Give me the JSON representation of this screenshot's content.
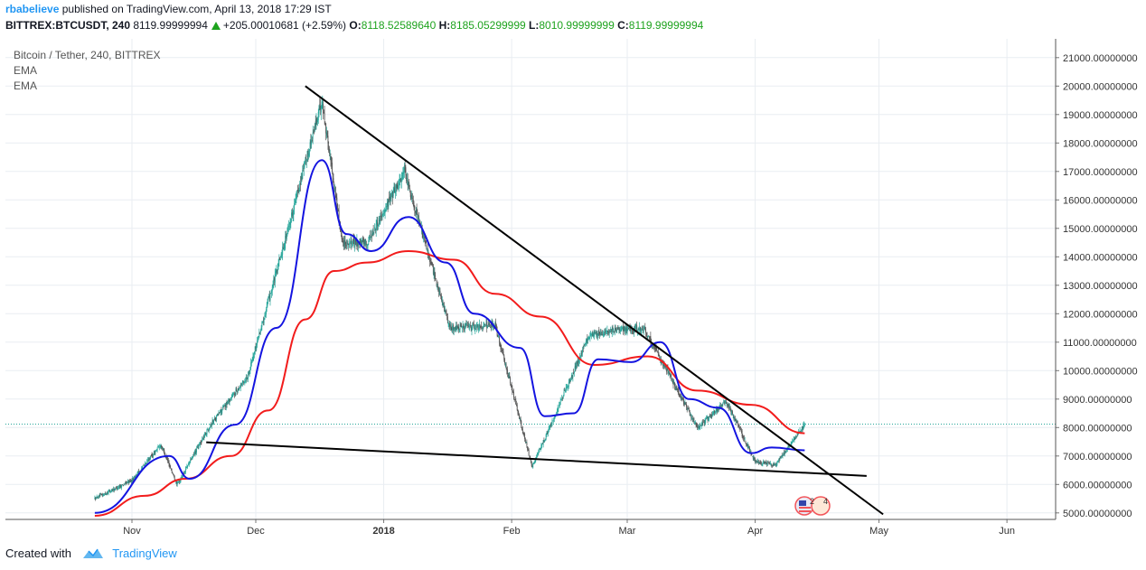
{
  "header": {
    "author": "rbabelieve",
    "published_text": "published on TradingView.com, April 13, 2018 17:29 IST",
    "symbol": "BITTREX:BTCUSDT, 240",
    "last": "8119.99999994",
    "change": "+205.00010681 (+2.59%)",
    "open_label": "O:",
    "open": "8118.52589640",
    "high_label": "H:",
    "high": "8185.05299999",
    "low_label": "L:",
    "low": "8010.99999999",
    "close_label": "C:",
    "close": "8119.99999994"
  },
  "legend": {
    "title": "Bitcoin / Tether, 240, BITTREX",
    "ind1": "EMA",
    "ind2": "EMA"
  },
  "footer": {
    "created_with": "Created with",
    "brand": "TradingView"
  },
  "colors": {
    "up": "#26a69a",
    "down": "#555555",
    "ema_fast": "#1414e0",
    "ema_slow": "#f21c1c",
    "trendline": "#000000",
    "last_line": "#26a69a",
    "accent": "#2196f3"
  },
  "chart_data": {
    "type": "candlestick",
    "x_labels": [
      "Nov",
      "Dec",
      "2018",
      "Feb",
      "Mar",
      "Apr",
      "May",
      "Jun"
    ],
    "y_ticks": [
      "21000.00000000",
      "20000.00000000",
      "19000.00000000",
      "18000.00000000",
      "17000.00000000",
      "16000.00000000",
      "15000.00000000",
      "14000.00000000",
      "13000.00000000",
      "12000.00000000",
      "11000.00000000",
      "10000.00000000",
      "9000.00000000",
      "8000.00000000",
      "7000.00000000",
      "6000.00000000",
      "5000.00000000"
    ],
    "ylim": [
      4900,
      21500
    ],
    "last_price": 8120,
    "close_series_x": [
      "2017-10-23",
      "2017-11-01",
      "2017-11-08",
      "2017-11-12",
      "2017-11-20",
      "2017-11-29",
      "2017-12-07",
      "2017-12-17",
      "2017-12-22",
      "2017-12-28",
      "2018-01-06",
      "2018-01-17",
      "2018-01-28",
      "2018-02-06",
      "2018-02-20",
      "2018-03-05",
      "2018-03-18",
      "2018-03-25",
      "2018-04-01",
      "2018-04-06",
      "2018-04-13"
    ],
    "close_series_y": [
      5500,
      6150,
      7400,
      6000,
      8100,
      9800,
      14000,
      19500,
      14500,
      14500,
      17000,
      11500,
      11600,
      6600,
      11300,
      11500,
      8000,
      8900,
      6800,
      6700,
      8120
    ],
    "ema_fast_x": [
      "2017-10-23",
      "2017-11-10",
      "2017-11-15",
      "2017-11-26",
      "2017-12-06",
      "2017-12-17",
      "2017-12-23",
      "2017-12-29",
      "2018-01-07",
      "2018-01-16",
      "2018-01-23",
      "2018-02-03",
      "2018-02-09",
      "2018-02-16",
      "2018-02-22",
      "2018-03-02",
      "2018-03-09",
      "2018-03-16",
      "2018-03-23",
      "2018-03-31",
      "2018-04-05",
      "2018-04-13"
    ],
    "ema_fast_y": [
      5000,
      7000,
      6200,
      8100,
      11500,
      17400,
      14800,
      14200,
      15400,
      13800,
      12000,
      10800,
      8400,
      8500,
      10400,
      10300,
      11000,
      9000,
      8700,
      7100,
      7300,
      7200
    ],
    "ema_slow_x": [
      "2017-10-23",
      "2017-11-04",
      "2017-11-14",
      "2017-11-25",
      "2017-12-04",
      "2017-12-13",
      "2017-12-20",
      "2017-12-28",
      "2018-01-07",
      "2018-01-18",
      "2018-01-28",
      "2018-02-08",
      "2018-02-21",
      "2018-03-06",
      "2018-03-18",
      "2018-03-31",
      "2018-04-13"
    ],
    "ema_slow_y": [
      4900,
      5600,
      6200,
      7000,
      8600,
      11800,
      13500,
      13800,
      14200,
      13900,
      12700,
      11900,
      10200,
      10500,
      9300,
      8800,
      7800
    ],
    "trendlines": [
      {
        "name": "descending",
        "from": [
          "2017-12-13",
          20000
        ],
        "to": [
          "2018-05-02",
          4950
        ]
      },
      {
        "name": "support",
        "from": [
          "2017-11-19",
          7480
        ],
        "to": [
          "2018-04-28",
          6300
        ]
      }
    ]
  }
}
